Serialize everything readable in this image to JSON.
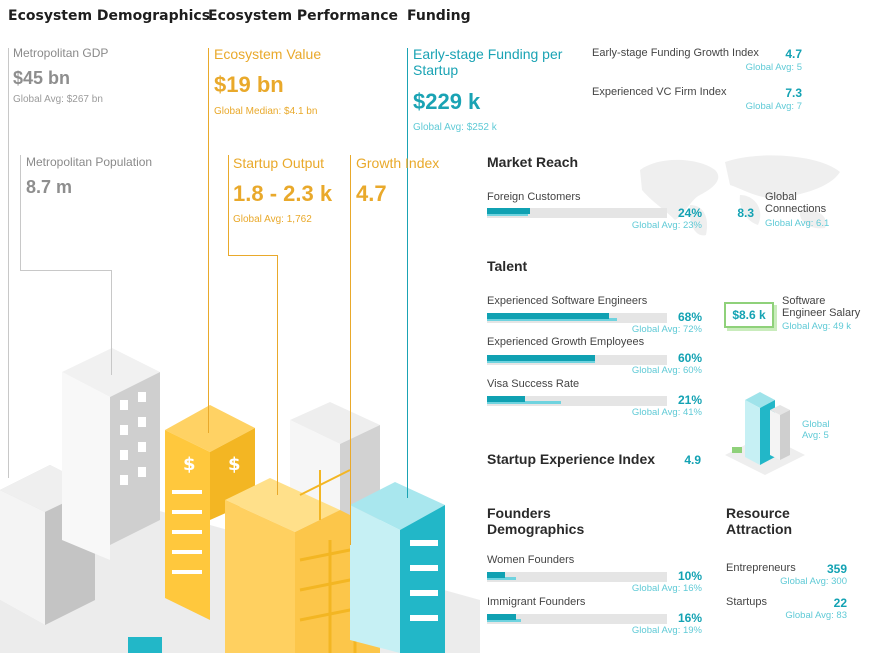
{
  "headers": {
    "demographics": "Ecosystem Demographics",
    "performance": "Ecosystem Performance",
    "funding": "Funding"
  },
  "demographics": {
    "gdp_label": "Metropolitan GDP",
    "gdp_value": "$45 bn",
    "gdp_avg": "Global Avg: $267 bn",
    "pop_label": "Metropolitan Population",
    "pop_value": "8.7 m"
  },
  "performance": {
    "value_label": "Ecosystem Value",
    "value": "$19 bn",
    "value_median": "Global Median: $4.1 bn",
    "output_label": "Startup Output",
    "output_value": "1.8 - 2.3 k",
    "output_avg": "Global Avg: 1,762",
    "growth_label": "Growth Index",
    "growth_value": "4.7"
  },
  "funding": {
    "early_label": "Early-stage Funding per Startup",
    "early_value": "$229 k",
    "early_avg": "Global Avg: $252 k",
    "growth_index_label": "Early-stage Funding Growth Index",
    "growth_index_value": "4.7",
    "growth_index_avg": "Global Avg: 5",
    "vc_label": "Experienced VC Firm Index",
    "vc_value": "7.3",
    "vc_avg": "Global Avg: 7"
  },
  "market_reach": {
    "title": "Market Reach",
    "foreign_label": "Foreign Customers",
    "foreign_pct": "24%",
    "foreign_avg": "Global Avg: 23%",
    "foreign_value": 24,
    "foreign_global": 23,
    "connections_value": "8.3",
    "connections_label": "Global Connections",
    "connections_avg": "Global Avg: 6.1"
  },
  "talent": {
    "title": "Talent",
    "rows": [
      {
        "label": "Experienced Software Engineers",
        "pct": "68%",
        "avg": "Global Avg: 72%",
        "value": 68,
        "global": 72
      },
      {
        "label": "Experienced Growth Employees",
        "pct": "60%",
        "avg": "Global Avg: 60%",
        "value": 60,
        "global": 60
      },
      {
        "label": "Visa Success Rate",
        "pct": "21%",
        "avg": "Global Avg: 41%",
        "value": 21,
        "global": 41
      }
    ],
    "salary_value": "$8.6 k",
    "salary_label": "Software Engineer Salary",
    "salary_avg": "Global Avg: 49 k",
    "building_avg": "Global Avg: 5"
  },
  "startup_experience": {
    "title": "Startup Experience Index",
    "value": "4.9"
  },
  "founders": {
    "title": "Founders Demographics",
    "rows": [
      {
        "label": "Women Founders",
        "pct": "10%",
        "avg": "Global Avg: 16%",
        "value": 10,
        "global": 16
      },
      {
        "label": "Immigrant Founders",
        "pct": "16%",
        "avg": "Global Avg: 19%",
        "value": 16,
        "global": 19
      }
    ]
  },
  "resource": {
    "title": "Resource Attraction",
    "rows": [
      {
        "label": "Entrepreneurs",
        "value": "359",
        "avg": "Global Avg: 300"
      },
      {
        "label": "Startups",
        "value": "22",
        "avg": "Global Avg: 83"
      }
    ]
  },
  "colors": {
    "grey": "#8e8e8e",
    "yellow": "#e9a92b",
    "teal": "#1aa3b4",
    "teal_light": "#6fd3df"
  }
}
